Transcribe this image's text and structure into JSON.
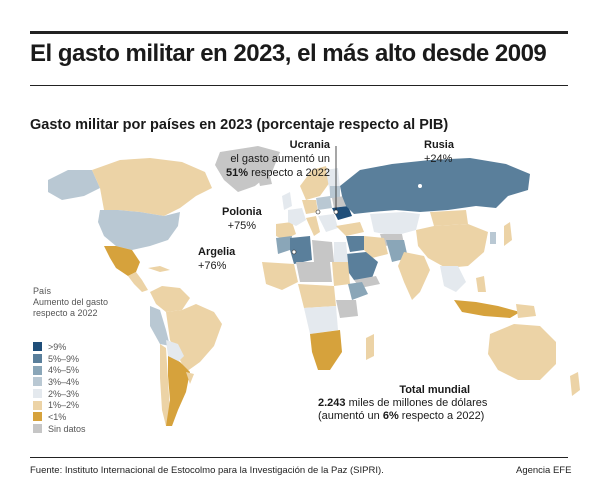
{
  "header": {
    "title": "El gasto militar en 2023, el más alto desde 2009",
    "subtitle": "Gasto militar por países en 2023 (porcentaje respecto al PIB)"
  },
  "annotations": {
    "ucrania": {
      "name": "Ucrania",
      "line1": "el gasto aumentó un",
      "value": "51%",
      "line2_rest": " respecto a 2022"
    },
    "rusia": {
      "name": "Rusia",
      "value": "+24%"
    },
    "polonia": {
      "name": "Polonia",
      "value": "+75%"
    },
    "argelia": {
      "name": "Argelia",
      "value": "+76%"
    }
  },
  "legend": {
    "header_line1": "País",
    "header_line2": "Aumento del gasto",
    "header_line3": "respecto a 2022",
    "items": [
      {
        "label": ">9%",
        "color": "#1f4e79"
      },
      {
        "label": "5%–9%",
        "color": "#5a7f9b"
      },
      {
        "label": "4%–5%",
        "color": "#8aa6b8"
      },
      {
        "label": "3%–4%",
        "color": "#b9c8d3"
      },
      {
        "label": "2%–3%",
        "color": "#e4e9ee"
      },
      {
        "label": "1%–2%",
        "color": "#ecd3a6"
      },
      {
        "label": "<1%",
        "color": "#d6a23c"
      },
      {
        "label": "Sin datos",
        "color": "#c6c6c6"
      }
    ]
  },
  "total": {
    "title": "Total mundial",
    "amount": "2.243",
    "amount_rest": " miles de millones de dólares",
    "change_pre": "(aumentó un ",
    "change_value": "6%",
    "change_post": " respecto a 2022)"
  },
  "footer": {
    "source": "Fuente: Instituto Internacional de Estocolmo para la Investigación de la Paz (SIPRI).",
    "credit": "Agencia EFE"
  }
}
